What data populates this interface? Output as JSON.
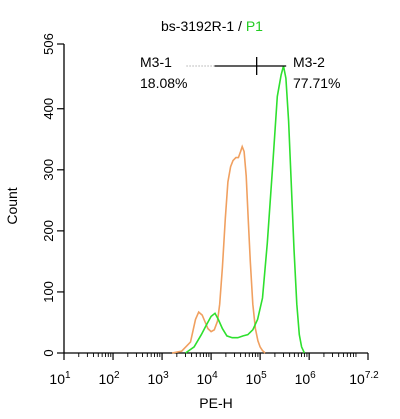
{
  "chart_data": {
    "type": "line",
    "title": {
      "prefix": "bs-3192R-1 / ",
      "gate": "P1"
    },
    "xlabel": "PE-H",
    "ylabel": "Count",
    "x_scale": "log",
    "xlim": [
      10,
      15848931.92
    ],
    "ylim": [
      0,
      506
    ],
    "x_ticks": [
      {
        "base": "10",
        "exp": "1",
        "value": 10
      },
      {
        "base": "10",
        "exp": "2",
        "value": 100
      },
      {
        "base": "10",
        "exp": "3",
        "value": 1000
      },
      {
        "base": "10",
        "exp": "4",
        "value": 10000
      },
      {
        "base": "10",
        "exp": "5",
        "value": 100000
      },
      {
        "base": "10",
        "exp": "6",
        "value": 1000000
      },
      {
        "base": "10",
        "exp": "7.2",
        "value": 15848931.92
      }
    ],
    "y_ticks": [
      0,
      100,
      200,
      300,
      400,
      506
    ],
    "colors": {
      "control": "#f0a060",
      "sample": "#2ee02e",
      "gate_title": "#22cc22",
      "axis": "#000000"
    },
    "series": [
      {
        "color_key": "control",
        "points": [
          [
            1600,
            0
          ],
          [
            2500,
            3
          ],
          [
            3800,
            18
          ],
          [
            4800,
            55
          ],
          [
            5600,
            67
          ],
          [
            6600,
            62
          ],
          [
            7600,
            50
          ],
          [
            8600,
            40
          ],
          [
            10000,
            35
          ],
          [
            11600,
            38
          ],
          [
            13500,
            52
          ],
          [
            15000,
            80
          ],
          [
            17000,
            140
          ],
          [
            19500,
            220
          ],
          [
            22000,
            280
          ],
          [
            25000,
            305
          ],
          [
            28000,
            315
          ],
          [
            32000,
            320
          ],
          [
            36000,
            320
          ],
          [
            40000,
            330
          ],
          [
            43000,
            338
          ],
          [
            47000,
            330
          ],
          [
            52000,
            290
          ],
          [
            57000,
            220
          ],
          [
            63000,
            150
          ],
          [
            71000,
            80
          ],
          [
            80000,
            40
          ],
          [
            90000,
            20
          ],
          [
            100000,
            10
          ],
          [
            112000,
            4
          ],
          [
            126000,
            0
          ]
        ]
      },
      {
        "color_key": "sample",
        "points": [
          [
            3000,
            0
          ],
          [
            4500,
            10
          ],
          [
            6300,
            30
          ],
          [
            7900,
            45
          ],
          [
            10000,
            60
          ],
          [
            12000,
            65
          ],
          [
            14000,
            55
          ],
          [
            17000,
            40
          ],
          [
            21000,
            28
          ],
          [
            27000,
            25
          ],
          [
            35000,
            25
          ],
          [
            45000,
            28
          ],
          [
            56000,
            30
          ],
          [
            71000,
            38
          ],
          [
            89000,
            55
          ],
          [
            112000,
            90
          ],
          [
            140000,
            180
          ],
          [
            178000,
            300
          ],
          [
            224000,
            420
          ],
          [
            268000,
            455
          ],
          [
            300000,
            470
          ],
          [
            335000,
            450
          ],
          [
            380000,
            380
          ],
          [
            430000,
            280
          ],
          [
            490000,
            170
          ],
          [
            560000,
            80
          ],
          [
            630000,
            30
          ],
          [
            700000,
            10
          ],
          [
            800000,
            0
          ]
        ]
      }
    ],
    "gates": [
      {
        "name": "M3-1",
        "percent": "18.08%"
      },
      {
        "name": "M3-2",
        "percent": "77.71%"
      }
    ],
    "gate_marker": {
      "x_start": 3160,
      "x_split": 85000,
      "x_end": 340000,
      "y": 470
    },
    "grid": false,
    "legend": "none"
  }
}
